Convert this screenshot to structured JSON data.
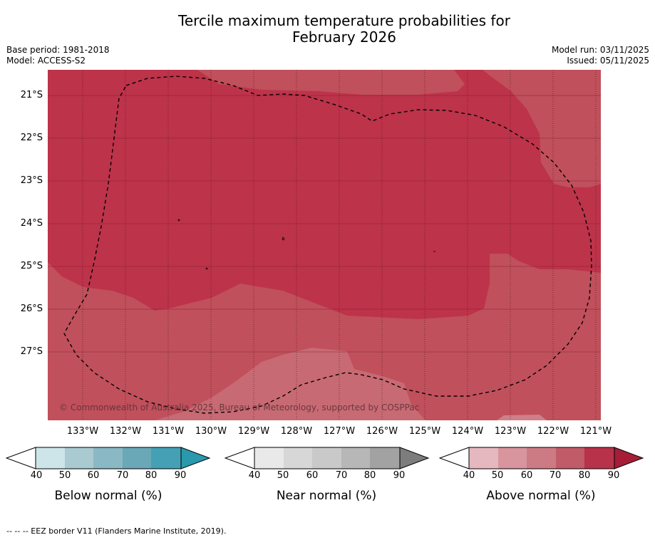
{
  "title_line1": "Tercile maximum temperature probabilities for",
  "title_line2": "February 2026",
  "base_period": "Base period: 1981-2018",
  "model": "Model: ACCESS-S2",
  "model_run": "Model run: 03/11/2025",
  "issued": "Issued: 05/11/2025",
  "copyright": "© Commonwealth of Australia 2025, Bureau of Meteorology, supported by COSPPac",
  "lat_labels": [
    "21°S",
    "22°S",
    "23°S",
    "24°S",
    "25°S",
    "26°S",
    "27°S"
  ],
  "lon_labels": [
    "133°W",
    "132°W",
    "131°W",
    "130°W",
    "129°W",
    "128°W",
    "127°W",
    "126°W",
    "125°W",
    "124°W",
    "123°W",
    "122°W",
    "121°W"
  ],
  "colorbars": [
    {
      "title": "Below normal (%)",
      "colors": [
        "#cde4e8",
        "#a9cad0",
        "#8ab8c5",
        "#6aa8b8",
        "#44a0b5",
        "#2a98ad"
      ]
    },
    {
      "title": "Near normal (%)",
      "colors": [
        "#e9e9e9",
        "#d7d7d7",
        "#c9c9c9",
        "#b7b7b7",
        "#a2a2a2",
        "#7d7d7d"
      ]
    },
    {
      "title": "Above normal (%)",
      "colors": [
        "#e5b8bf",
        "#d8959d",
        "#cc7b85",
        "#c15b68",
        "#b8324a",
        "#a71d38"
      ]
    }
  ],
  "colorbar_ticks": [
    "40",
    "50",
    "60",
    "70",
    "80",
    "90"
  ],
  "footnote": "--  --  -- EEZ border V11 (Flanders Marine Institute, 2019).",
  "map_colors": {
    "p70": "#c0505b",
    "p80": "#bd334a",
    "p60": "#c86a73",
    "p50": "#d48a91"
  }
}
